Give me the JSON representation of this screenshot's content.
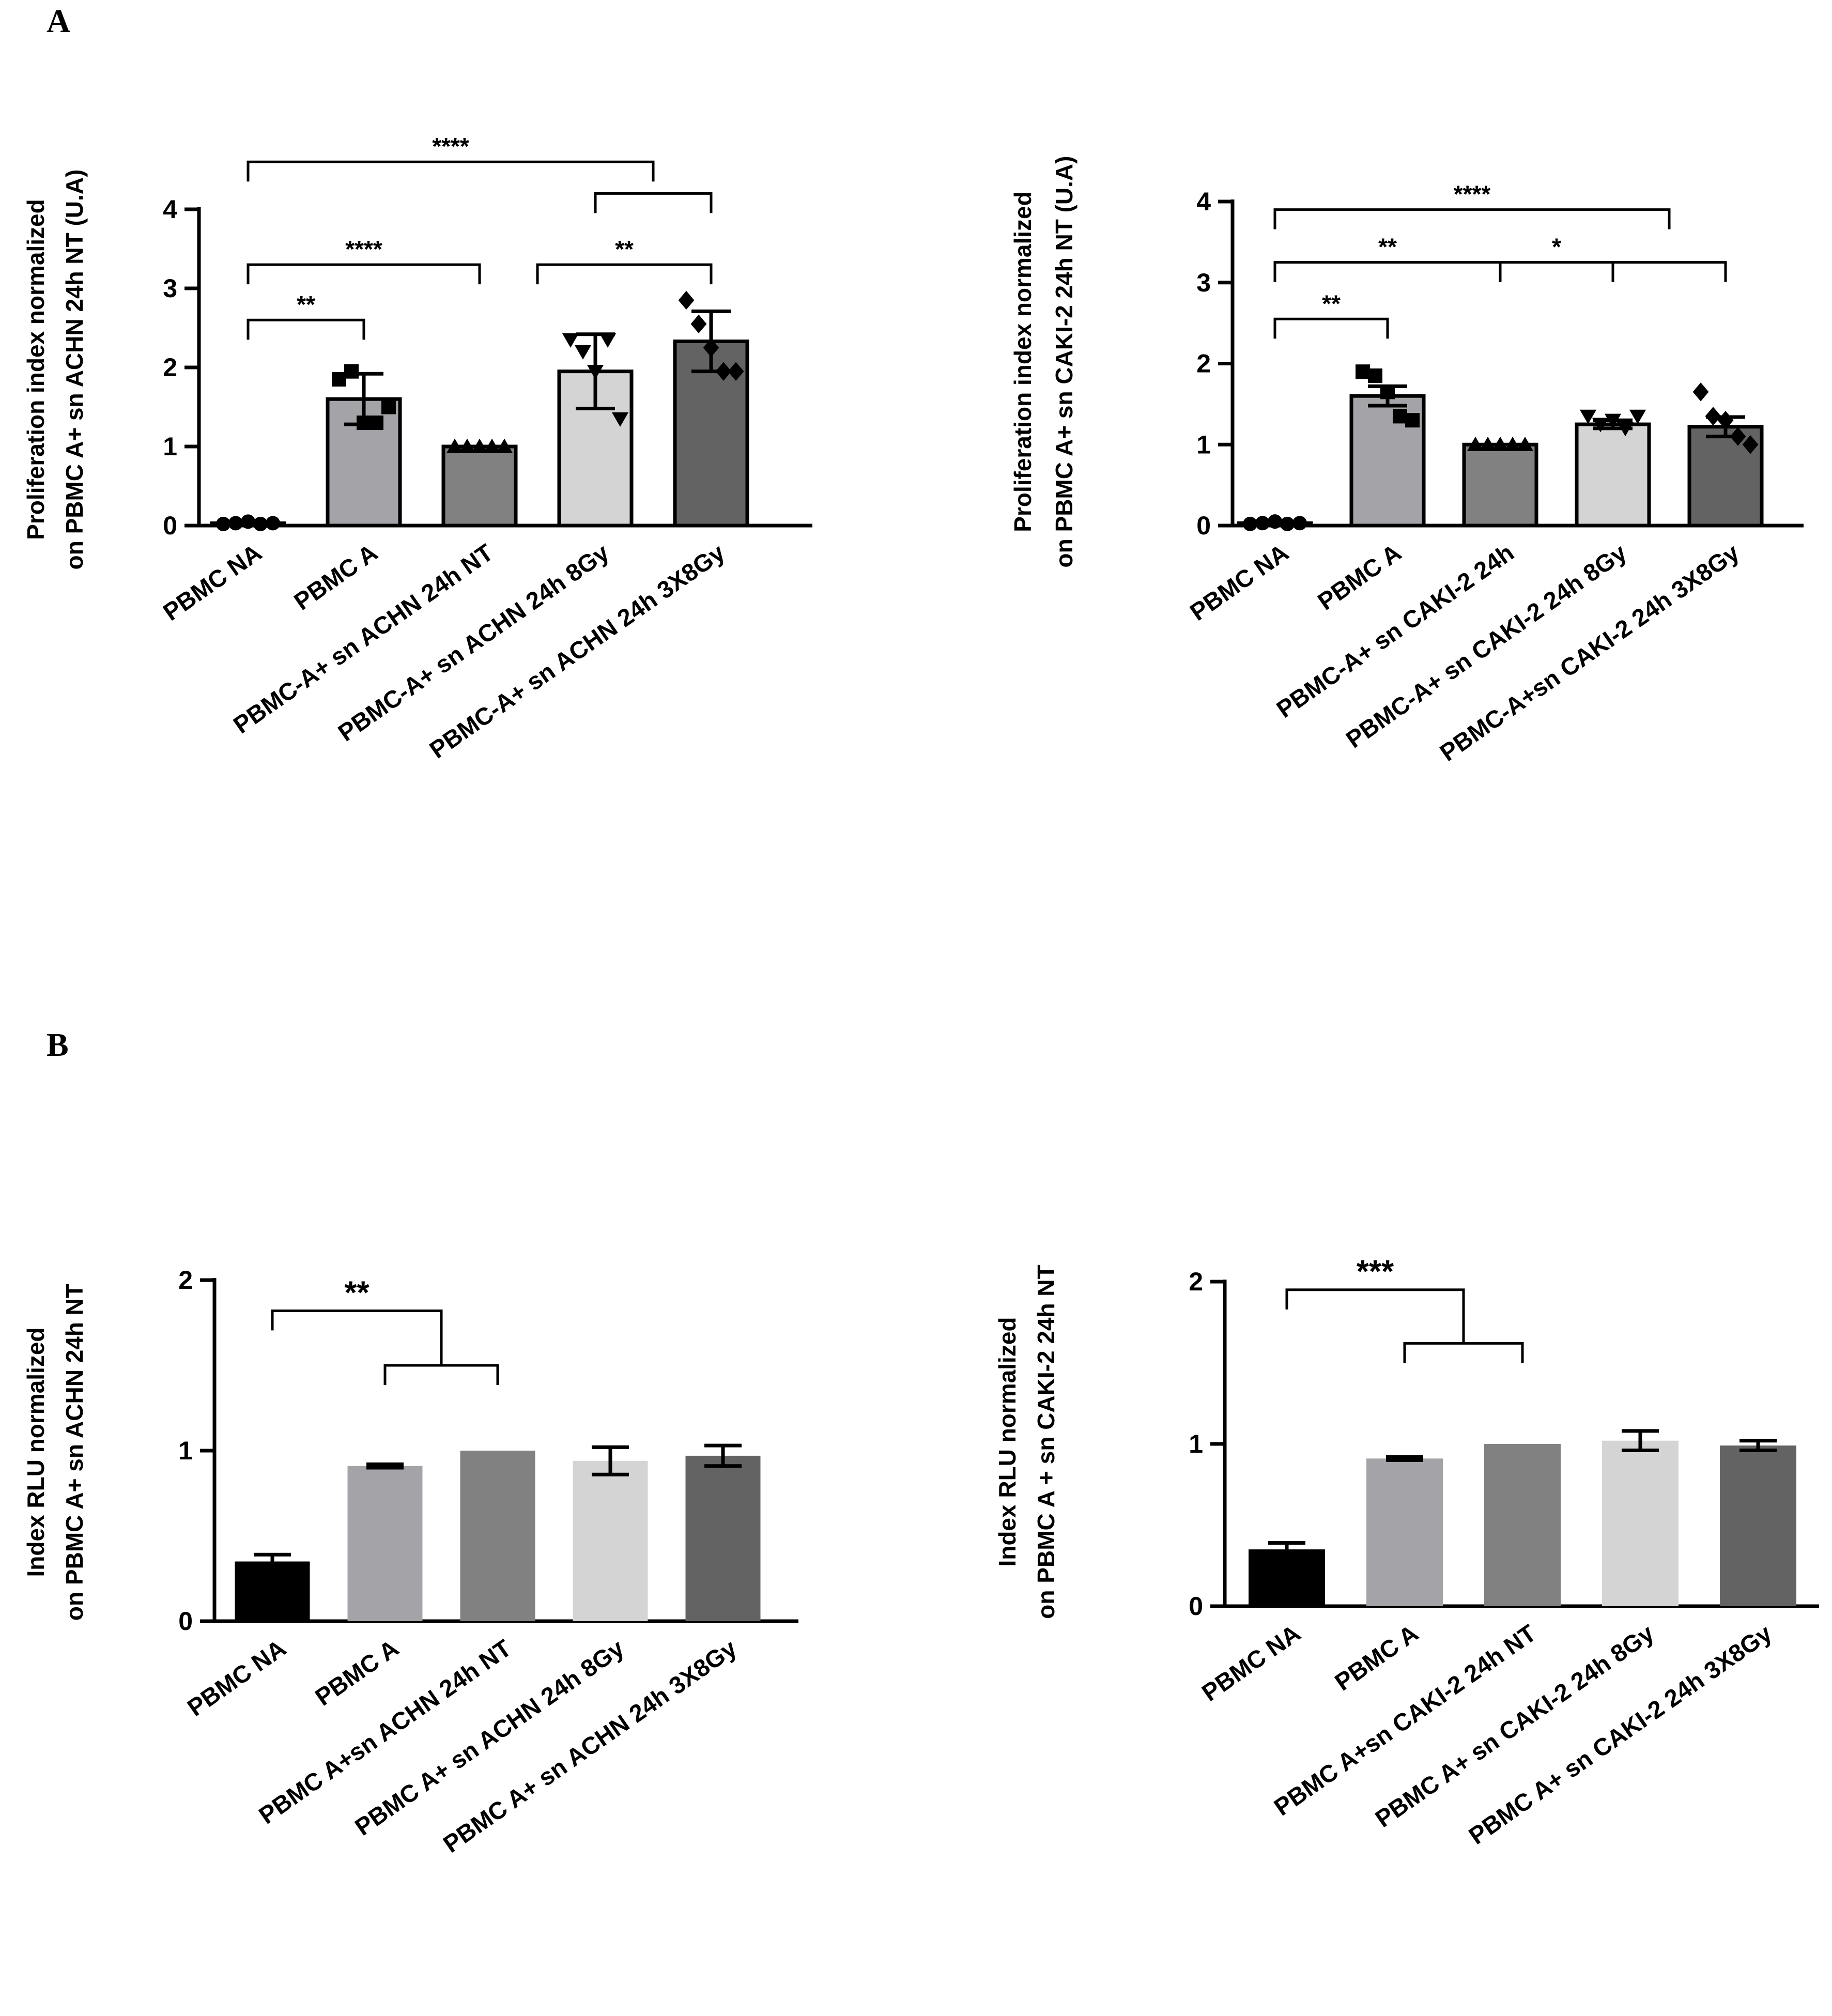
{
  "panels": {
    "A": "A",
    "B": "B"
  },
  "chart_data": [
    {
      "id": "A-left",
      "type": "bar",
      "title": "",
      "ylabel": [
        "Proliferation index normalized",
        "on PBMC A+ sn ACHN 24h NT (U.A)"
      ],
      "xlabel": "",
      "ylim": [
        0,
        4
      ],
      "yticks": [
        0,
        1,
        2,
        3,
        4
      ],
      "categories": [
        "PBMC NA",
        "PBMC A",
        "PBMC-A+ sn ACHN 24h NT",
        "PBMC-A+ sn ACHN 24h 8Gy",
        "PBMC-A+ sn ACHN 24h 3X8Gy"
      ],
      "values": [
        0.03,
        1.6,
        1.0,
        1.95,
        2.33
      ],
      "errors": [
        0.02,
        0.32,
        0.0,
        0.47,
        0.38
      ],
      "colors": [
        "#ffffff",
        "#a4a4a8",
        "#818181",
        "#d4d4d4",
        "#636363"
      ],
      "markers": [
        "circle",
        "square",
        "triangle-up",
        "triangle-down",
        "diamond"
      ],
      "points": [
        [
          0.02,
          0.03,
          0.05,
          0.02,
          0.03
        ],
        [
          1.85,
          1.95,
          1.3,
          1.3,
          1.5
        ],
        [
          1.0,
          1.0,
          1.0,
          1.0,
          1.0
        ],
        [
          2.35,
          2.2,
          1.95,
          2.35,
          1.35
        ],
        [
          2.85,
          2.55,
          2.25,
          1.95,
          1.95
        ]
      ],
      "significance": [
        {
          "from": 0,
          "to": 1,
          "label": "**",
          "level": 2.6
        },
        {
          "from": 0,
          "to": 2,
          "label": "****",
          "level": 3.3
        },
        {
          "from": 2.5,
          "to": 4,
          "label": "**",
          "level": 3.3
        },
        {
          "from": 0,
          "to": 3.5,
          "label": "****",
          "level": 4.6
        },
        {
          "from": 3,
          "to": 4,
          "label": "",
          "level": 4.2
        }
      ]
    },
    {
      "id": "A-right",
      "type": "bar",
      "title": "",
      "ylabel": [
        "Proliferation index normalized",
        "on PBMC A+ sn CAKI-2 24h NT (U.A)"
      ],
      "xlabel": "",
      "ylim": [
        0,
        4
      ],
      "yticks": [
        0,
        1,
        2,
        3,
        4
      ],
      "categories": [
        "PBMC NA",
        "PBMC A",
        "PBMC-A+ sn CAKI-2  24h",
        "PBMC-A+ sn CAKI-2 24h 8Gy",
        "PBMC-A+sn CAKI-2 24h 3X8Gy"
      ],
      "values": [
        0.03,
        1.6,
        1.0,
        1.25,
        1.22
      ],
      "errors": [
        0.02,
        0.12,
        0.0,
        0.05,
        0.12
      ],
      "colors": [
        "#ffffff",
        "#a4a4a8",
        "#818181",
        "#d4d4d4",
        "#636363"
      ],
      "markers": [
        "circle",
        "square",
        "triangle-up",
        "triangle-down",
        "diamond"
      ],
      "points": [
        [
          0.02,
          0.03,
          0.05,
          0.02,
          0.03
        ],
        [
          1.9,
          1.85,
          1.65,
          1.35,
          1.3
        ],
        [
          1.0,
          1.0,
          1.0,
          1.0,
          1.0
        ],
        [
          1.35,
          1.25,
          1.3,
          1.2,
          1.35
        ],
        [
          1.65,
          1.35,
          1.3,
          1.1,
          1.0
        ]
      ],
      "significance": [
        {
          "from": 0,
          "to": 1,
          "label": "**",
          "level": 2.55
        },
        {
          "from": 0,
          "to": 2,
          "label": "**",
          "level": 3.25
        },
        {
          "from": 2,
          "to": 3,
          "label": "*",
          "level": 3.25
        },
        {
          "from": 3,
          "to": 4,
          "label": "",
          "level": 3.25
        },
        {
          "from": 0,
          "to": 3.5,
          "label": "****",
          "level": 3.9
        }
      ]
    },
    {
      "id": "B-left",
      "type": "bar",
      "title": "",
      "ylabel": [
        "Index RLU normalized",
        "on PBMC A+ sn  ACHN 24h NT"
      ],
      "xlabel": "",
      "ylim": [
        0,
        2
      ],
      "yticks": [
        0,
        1,
        2
      ],
      "categories": [
        "PBMC NA",
        "PBMC A",
        "PBMC A+sn ACHN 24h NT",
        "PBMC A+ sn ACHN 24h 8Gy",
        "PBMC A+ sn ACHN 24h 3X8Gy"
      ],
      "values": [
        0.35,
        0.91,
        1.0,
        0.94,
        0.97
      ],
      "errors": [
        0.04,
        0.01,
        0.0,
        0.08,
        0.06
      ],
      "colors": [
        "#000000",
        "#a4a4a8",
        "#818181",
        "#d4d4d4",
        "#636363"
      ],
      "significance": [
        {
          "from": 1,
          "to": 2,
          "label": "",
          "level": 1.5
        },
        {
          "from": 0,
          "to": 1.5,
          "label": "**",
          "level": 1.82
        }
      ]
    },
    {
      "id": "B-right",
      "type": "bar",
      "title": "",
      "ylabel": [
        "Index RLU normalized",
        "on PBMC A + sn CAKI-2 24h NT"
      ],
      "xlabel": "",
      "ylim": [
        0,
        2
      ],
      "yticks": [
        0,
        1,
        2
      ],
      "categories": [
        "PBMC NA",
        "PBMC A",
        "PBMC A+sn CAKI-2 24h NT",
        "PBMC A+ sn CAKI-2 24h 8Gy",
        "PBMC A+ sn CAKI-2 24h 3X8Gy"
      ],
      "values": [
        0.35,
        0.91,
        1.0,
        1.02,
        0.99
      ],
      "errors": [
        0.04,
        0.01,
        0.0,
        0.06,
        0.03
      ],
      "colors": [
        "#000000",
        "#a4a4a8",
        "#818181",
        "#d4d4d4",
        "#636363"
      ],
      "significance": [
        {
          "from": 1,
          "to": 2,
          "label": "",
          "level": 1.62
        },
        {
          "from": 0,
          "to": 1.5,
          "label": "***",
          "level": 1.95
        }
      ]
    }
  ]
}
